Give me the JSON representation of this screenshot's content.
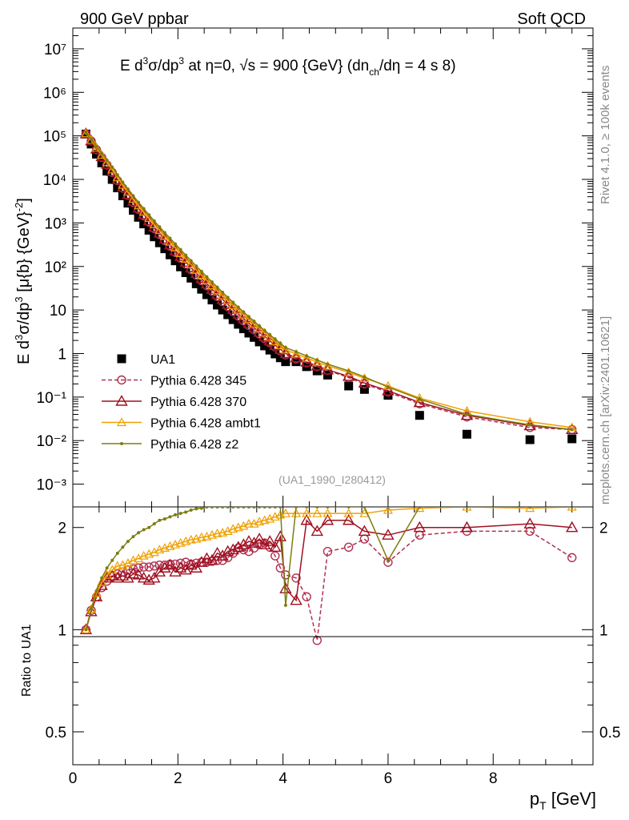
{
  "header": {
    "left": "900 GeV ppbar",
    "right": "Soft QCD"
  },
  "side_labels": {
    "top": "Rivet 4.1.0, ≥ 100k events",
    "bottom": "mcplots.cern.ch [arXiv:2401.10621]"
  },
  "chart_data": [
    {
      "type": "scatter",
      "title": "E d³σ/dp³ at η=0, √s = 900 {GeV} (dn_ch/dη = 4 s 8)",
      "xlabel": "p_T [GeV]",
      "ylabel": "E d³σ/dp³ [μ{b} {GeV}⁻²]",
      "yscale": "log",
      "xlim": [
        0,
        9.9
      ],
      "ylim": [
        0.0003,
        30000000
      ],
      "analysis_tag": "(UA1_1990_I280412)",
      "y_tick_labels": [
        "10⁻³",
        "10⁻²",
        "10⁻¹",
        "1",
        "10",
        "10²",
        "10³",
        "10⁴",
        "10⁵",
        "10⁶",
        "10⁷"
      ],
      "x_tick_labels": [
        "0",
        "2",
        "4",
        "6",
        "8"
      ],
      "legend_position": "center-left",
      "series": [
        {
          "name": "UA1",
          "color": "#000000",
          "x": [
            0.25,
            0.35,
            0.45,
            0.55,
            0.65,
            0.75,
            0.85,
            0.95,
            1.05,
            1.15,
            1.25,
            1.35,
            1.45,
            1.55,
            1.65,
            1.75,
            1.85,
            1.95,
            2.05,
            2.15,
            2.25,
            2.35,
            2.45,
            2.55,
            2.65,
            2.75,
            2.85,
            2.95,
            3.05,
            3.15,
            3.25,
            3.35,
            3.45,
            3.55,
            3.65,
            3.75,
            3.85,
            3.95,
            4.05,
            4.25,
            4.45,
            4.65,
            4.85,
            5.25,
            5.55,
            6.0,
            6.6,
            7.5,
            8.7,
            9.5
          ],
          "y": [
            110000,
            65000,
            38000,
            24000,
            15500,
            10000,
            6400,
            4200,
            2850,
            1950,
            1350,
            950,
            680,
            480,
            350,
            255,
            185,
            135,
            98,
            72,
            54,
            40,
            30,
            22.5,
            17,
            13,
            10,
            7.8,
            6,
            4.7,
            3.7,
            2.95,
            2.35,
            1.85,
            1.5,
            1.2,
            0.98,
            0.8,
            0.65,
            0.65,
            0.5,
            0.4,
            0.32,
            0.18,
            0.15,
            0.11,
            0.038,
            0.014,
            0.0105,
            0.011
          ]
        },
        {
          "name": "Pythia 6.428 345",
          "color": "#b03050",
          "x": [
            0.25,
            0.35,
            0.45,
            0.55,
            0.65,
            0.75,
            0.85,
            0.95,
            1.05,
            1.15,
            1.25,
            1.35,
            1.45,
            1.55,
            1.65,
            1.75,
            1.85,
            1.95,
            2.05,
            2.15,
            2.25,
            2.35,
            2.45,
            2.55,
            2.65,
            2.75,
            2.85,
            2.95,
            3.05,
            3.15,
            3.25,
            3.35,
            3.45,
            3.55,
            3.65,
            3.75,
            3.85,
            3.95,
            4.05,
            4.25,
            4.45,
            4.65,
            4.85,
            5.25,
            5.55,
            6.0,
            6.6,
            7.5,
            8.7,
            9.5
          ],
          "y": [
            111000,
            76000,
            48000,
            32000,
            21500,
            14500,
            9400,
            6300,
            4300,
            2950,
            2050,
            1450,
            1040,
            740,
            540,
            390,
            290,
            210,
            155,
            114,
            84,
            63,
            47,
            36,
            27,
            20.5,
            15.5,
            12,
            9.2,
            7.2,
            5.6,
            4.4,
            3.5,
            2.8,
            2.2,
            1.77,
            1.42,
            1.15,
            0.93,
            0.75,
            0.61,
            0.5,
            0.41,
            0.28,
            0.2,
            0.13,
            0.07,
            0.035,
            0.02,
            0.018
          ]
        },
        {
          "name": "Pythia 6.428 370",
          "color": "#a01020",
          "x": [
            0.25,
            0.35,
            0.45,
            0.55,
            0.65,
            0.75,
            0.85,
            0.95,
            1.05,
            1.15,
            1.25,
            1.35,
            1.45,
            1.55,
            1.65,
            1.75,
            1.85,
            1.95,
            2.05,
            2.15,
            2.25,
            2.35,
            2.45,
            2.55,
            2.65,
            2.75,
            2.85,
            2.95,
            3.05,
            3.15,
            3.25,
            3.35,
            3.45,
            3.55,
            3.65,
            3.75,
            3.85,
            3.95,
            4.05,
            4.25,
            4.45,
            4.65,
            4.85,
            5.25,
            5.55,
            6.0,
            6.6,
            7.5,
            8.7,
            9.5
          ],
          "y": [
            112000,
            77000,
            50000,
            33500,
            22500,
            15200,
            9900,
            6650,
            4550,
            3150,
            2200,
            1560,
            1120,
            800,
            585,
            425,
            315,
            230,
            170,
            126,
            93,
            70,
            53,
            40,
            30,
            23,
            17.5,
            13.5,
            10.4,
            8.1,
            6.3,
            4.95,
            3.9,
            3.1,
            2.45,
            1.95,
            1.55,
            1.25,
            1.0,
            0.8,
            0.64,
            0.52,
            0.42,
            0.3,
            0.21,
            0.14,
            0.075,
            0.038,
            0.022,
            0.018
          ]
        },
        {
          "name": "Pythia 6.428 ambt1",
          "color": "#f0a000",
          "x": [
            0.25,
            0.35,
            0.45,
            0.55,
            0.65,
            0.75,
            0.85,
            0.95,
            1.05,
            1.15,
            1.25,
            1.35,
            1.45,
            1.55,
            1.65,
            1.75,
            1.85,
            1.95,
            2.05,
            2.15,
            2.25,
            2.35,
            2.45,
            2.55,
            2.65,
            2.75,
            2.85,
            2.95,
            3.05,
            3.15,
            3.25,
            3.35,
            3.45,
            3.55,
            3.65,
            3.75,
            3.85,
            3.95,
            4.05,
            4.25,
            4.45,
            4.65,
            4.85,
            5.25,
            5.55,
            6.0,
            6.6,
            7.5,
            8.7,
            9.5
          ],
          "y": [
            113000,
            80000,
            53000,
            36000,
            24500,
            16700,
            11000,
            7400,
            5100,
            3550,
            2500,
            1780,
            1280,
            920,
            675,
            495,
            365,
            270,
            200,
            149,
            111,
            83,
            63,
            48,
            36.5,
            28,
            21.5,
            16.5,
            12.8,
            10,
            7.8,
            6.1,
            4.8,
            3.8,
            3.0,
            2.4,
            1.9,
            1.53,
            1.22,
            0.98,
            0.79,
            0.64,
            0.52,
            0.37,
            0.27,
            0.18,
            0.095,
            0.048,
            0.027,
            0.02
          ]
        },
        {
          "name": "Pythia 6.428 z2",
          "color": "#7d7d10",
          "x": [
            0.25,
            0.35,
            0.45,
            0.55,
            0.65,
            0.75,
            0.85,
            0.95,
            1.05,
            1.15,
            1.25,
            1.35,
            1.45,
            1.55,
            1.65,
            1.75,
            1.85,
            1.95,
            2.05,
            2.15,
            2.25,
            2.35,
            2.45,
            2.55,
            2.65,
            2.75,
            2.85,
            2.95,
            3.05,
            3.15,
            3.25,
            3.35,
            3.45,
            3.55,
            3.65,
            3.75,
            3.85,
            3.95,
            4.05,
            4.25,
            4.45,
            4.65,
            4.85,
            5.25,
            5.55,
            6.0,
            6.6,
            7.5,
            8.7,
            9.5
          ],
          "y": [
            114000,
            84000,
            57000,
            39500,
            27500,
            19000,
            12700,
            8600,
            6000,
            4200,
            2980,
            2130,
            1540,
            1110,
            815,
            600,
            445,
            330,
            245,
            182,
            136,
            102,
            77,
            58,
            44,
            33.5,
            25.5,
            19.5,
            15,
            11.6,
            9.0,
            7.0,
            5.5,
            4.3,
            3.4,
            2.7,
            2.15,
            1.72,
            1.37,
            1.1,
            0.88,
            0.71,
            0.57,
            0.4,
            0.29,
            0.17,
            0.09,
            0.04,
            0.023,
            0.018
          ]
        }
      ]
    },
    {
      "type": "line",
      "ylabel": "Ratio to UA1",
      "xlim": [
        0,
        9.9
      ],
      "ylim": [
        0.4,
        2.3
      ],
      "y_tick_labels": [
        "0.5",
        "1",
        "2"
      ],
      "series": [
        {
          "name": "Pythia 6.428 345",
          "color": "#b03050",
          "x": [
            0.25,
            0.35,
            0.45,
            0.55,
            0.65,
            0.75,
            0.85,
            0.95,
            1.05,
            1.15,
            1.25,
            1.35,
            1.45,
            1.55,
            1.65,
            1.75,
            1.85,
            1.95,
            2.05,
            2.15,
            2.25,
            2.35,
            2.45,
            2.55,
            2.65,
            2.75,
            2.85,
            2.95,
            3.05,
            3.15,
            3.25,
            3.35,
            3.45,
            3.55,
            3.65,
            3.75,
            3.85,
            3.95,
            4.05,
            4.25,
            4.45,
            4.65,
            4.85,
            5.25,
            5.55,
            6.0,
            6.6,
            7.5,
            8.7,
            9.5
          ],
          "y": [
            1.0,
            1.14,
            1.25,
            1.33,
            1.39,
            1.43,
            1.46,
            1.48,
            1.5,
            1.51,
            1.52,
            1.53,
            1.53,
            1.54,
            1.55,
            1.55,
            1.56,
            1.56,
            1.57,
            1.58,
            1.56,
            1.57,
            1.58,
            1.58,
            1.59,
            1.6,
            1.6,
            1.63,
            1.68,
            1.74,
            1.72,
            1.7,
            1.74,
            1.78,
            1.8,
            1.75,
            1.65,
            1.52,
            1.45,
            1.42,
            1.25,
            0.93,
            1.7,
            1.75,
            1.85,
            1.58,
            1.9,
            1.95,
            1.95,
            1.63
          ]
        },
        {
          "name": "Pythia 6.428 370",
          "color": "#a01020",
          "x": [
            0.25,
            0.35,
            0.45,
            0.55,
            0.65,
            0.75,
            0.85,
            0.95,
            1.05,
            1.15,
            1.25,
            1.35,
            1.45,
            1.55,
            1.65,
            1.75,
            1.85,
            1.95,
            2.05,
            2.15,
            2.25,
            2.35,
            2.45,
            2.55,
            2.65,
            2.75,
            2.85,
            2.95,
            3.05,
            3.15,
            3.25,
            3.35,
            3.45,
            3.55,
            3.65,
            3.75,
            3.85,
            3.95,
            4.05,
            4.25,
            4.45,
            4.65,
            4.85,
            5.25,
            5.55,
            6.0,
            6.6,
            7.5,
            8.7,
            9.5
          ],
          "y": [
            1.0,
            1.13,
            1.25,
            1.35,
            1.42,
            1.44,
            1.42,
            1.44,
            1.42,
            1.46,
            1.45,
            1.42,
            1.4,
            1.42,
            1.48,
            1.52,
            1.55,
            1.48,
            1.52,
            1.5,
            1.55,
            1.52,
            1.58,
            1.62,
            1.6,
            1.68,
            1.65,
            1.7,
            1.72,
            1.75,
            1.78,
            1.82,
            1.8,
            1.85,
            1.78,
            1.82,
            1.75,
            1.88,
            1.32,
            1.22,
            2.1,
            1.95,
            2.1,
            2.1,
            1.95,
            1.9,
            2.0,
            2.0,
            2.05,
            2.0
          ]
        },
        {
          "name": "Pythia 6.428 ambt1",
          "color": "#f0a000",
          "x": [
            0.25,
            0.35,
            0.45,
            0.55,
            0.65,
            0.75,
            0.85,
            0.95,
            1.05,
            1.15,
            1.25,
            1.35,
            1.45,
            1.55,
            1.65,
            1.75,
            1.85,
            1.95,
            2.05,
            2.15,
            2.25,
            2.35,
            2.45,
            2.55,
            2.65,
            2.75,
            2.85,
            2.95,
            3.05,
            3.15,
            3.25,
            3.35,
            3.45,
            3.55,
            3.65,
            3.75,
            3.85,
            3.95,
            4.05,
            4.25,
            4.45,
            4.65,
            4.85,
            5.25,
            5.55,
            6.0,
            6.6,
            7.5,
            8.7,
            9.5
          ],
          "y": [
            1.0,
            1.15,
            1.28,
            1.38,
            1.45,
            1.5,
            1.54,
            1.55,
            1.57,
            1.6,
            1.62,
            1.65,
            1.67,
            1.69,
            1.72,
            1.74,
            1.76,
            1.78,
            1.8,
            1.82,
            1.84,
            1.85,
            1.87,
            1.88,
            1.9,
            1.92,
            1.93,
            1.95,
            1.98,
            2.0,
            2.02,
            2.05,
            2.05,
            2.08,
            2.1,
            2.12,
            2.15,
            2.18,
            2.2,
            2.2,
            2.2,
            2.2,
            2.2,
            2.2,
            2.2,
            2.25,
            2.28,
            2.3,
            2.28,
            2.3
          ]
        },
        {
          "name": "Pythia 6.428 z2",
          "color": "#7d7d10",
          "x": [
            0.25,
            0.35,
            0.45,
            0.55,
            0.65,
            0.75,
            0.85,
            0.95,
            1.05,
            1.15,
            1.25,
            1.35,
            1.45,
            1.55,
            1.65,
            1.75,
            1.85,
            1.95,
            2.05,
            2.15,
            2.25,
            2.35,
            2.45,
            2.55,
            2.65,
            2.75,
            2.85,
            2.95,
            3.05,
            3.15,
            3.25,
            3.35,
            3.45,
            3.55,
            3.65,
            3.75,
            3.85,
            3.95,
            4.05,
            4.25,
            4.45,
            4.65,
            4.85,
            5.25,
            5.55,
            6.0,
            6.6,
            7.5,
            8.7,
            9.5
          ],
          "y": [
            1.0,
            1.15,
            1.3,
            1.42,
            1.52,
            1.6,
            1.68,
            1.75,
            1.82,
            1.88,
            1.93,
            1.97,
            2.0,
            2.05,
            2.1,
            2.12,
            2.15,
            2.18,
            2.2,
            2.22,
            2.25,
            2.27,
            2.28,
            2.3,
            2.3,
            2.3,
            2.3,
            2.3,
            2.3,
            2.3,
            2.3,
            2.3,
            2.3,
            2.3,
            2.3,
            2.3,
            2.3,
            2.3,
            1.18,
            2.3,
            2.3,
            2.3,
            2.3,
            2.3,
            2.3,
            1.6,
            2.3,
            2.3,
            2.3,
            2.3
          ]
        }
      ]
    }
  ]
}
